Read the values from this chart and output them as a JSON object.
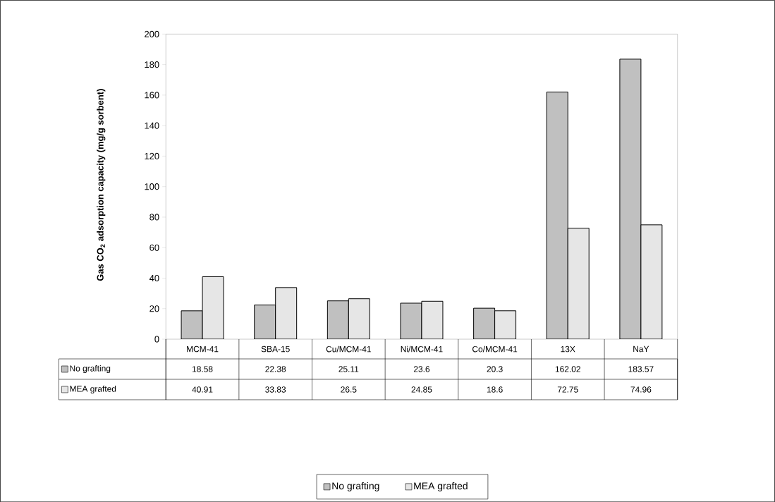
{
  "chart_data": {
    "type": "bar",
    "ylabel": "Gas CO$_{2}$ adsorption capacity (mg/g sorbent)",
    "categories": [
      "MCM-41",
      "SBA-15",
      "Cu/MCM-41",
      "Ni/MCM-41",
      "Co/MCM-41",
      "13X",
      "NaY"
    ],
    "series": [
      {
        "name": "No grafting",
        "color": "#c0c0c0",
        "values": [
          18.58,
          22.38,
          25.11,
          23.6,
          20.3,
          162.02,
          183.57
        ]
      },
      {
        "name": "MEA grafted",
        "color": "#e6e6e6",
        "values": [
          40.91,
          33.83,
          26.5,
          24.85,
          18.6,
          72.75,
          74.96
        ]
      }
    ],
    "ylim": [
      0,
      200
    ],
    "yticks": [
      0,
      20,
      40,
      60,
      80,
      100,
      120,
      140,
      160,
      180,
      200
    ],
    "data_labels": true,
    "legend": "bottom",
    "grid": false
  }
}
